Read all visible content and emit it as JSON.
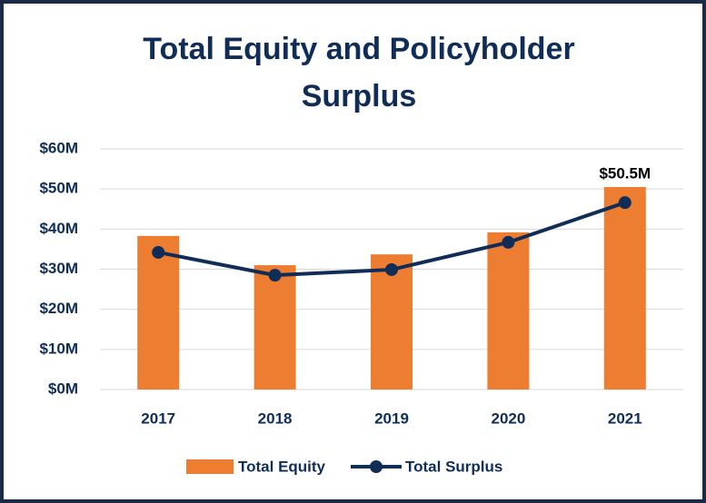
{
  "chart_data": {
    "type": "bar",
    "title": "Total Equity and Policyholder Surplus",
    "categories": [
      "2017",
      "2018",
      "2019",
      "2020",
      "2021"
    ],
    "series": [
      {
        "name": "Total Equity",
        "type": "bar",
        "color": "#ed7d31",
        "values": [
          38.3,
          31,
          33.7,
          39.2,
          50.5
        ],
        "value_labels": [
          null,
          null,
          null,
          null,
          "$50.5M"
        ]
      },
      {
        "name": "Total Surplus",
        "type": "line",
        "color": "#0f2d57",
        "values": [
          34.2,
          28.5,
          29.9,
          36.7,
          46.6
        ]
      }
    ],
    "ylim": [
      0,
      60
    ],
    "yticks": [
      {
        "value": 0,
        "label": "$0M"
      },
      {
        "value": 10,
        "label": "$10M"
      },
      {
        "value": 20,
        "label": "$20M"
      },
      {
        "value": 30,
        "label": "$30M"
      },
      {
        "value": 40,
        "label": "$40M"
      },
      {
        "value": 50,
        "label": "$50M"
      },
      {
        "value": 60,
        "label": "$60M"
      }
    ],
    "grid": true,
    "legend": "bottom"
  }
}
